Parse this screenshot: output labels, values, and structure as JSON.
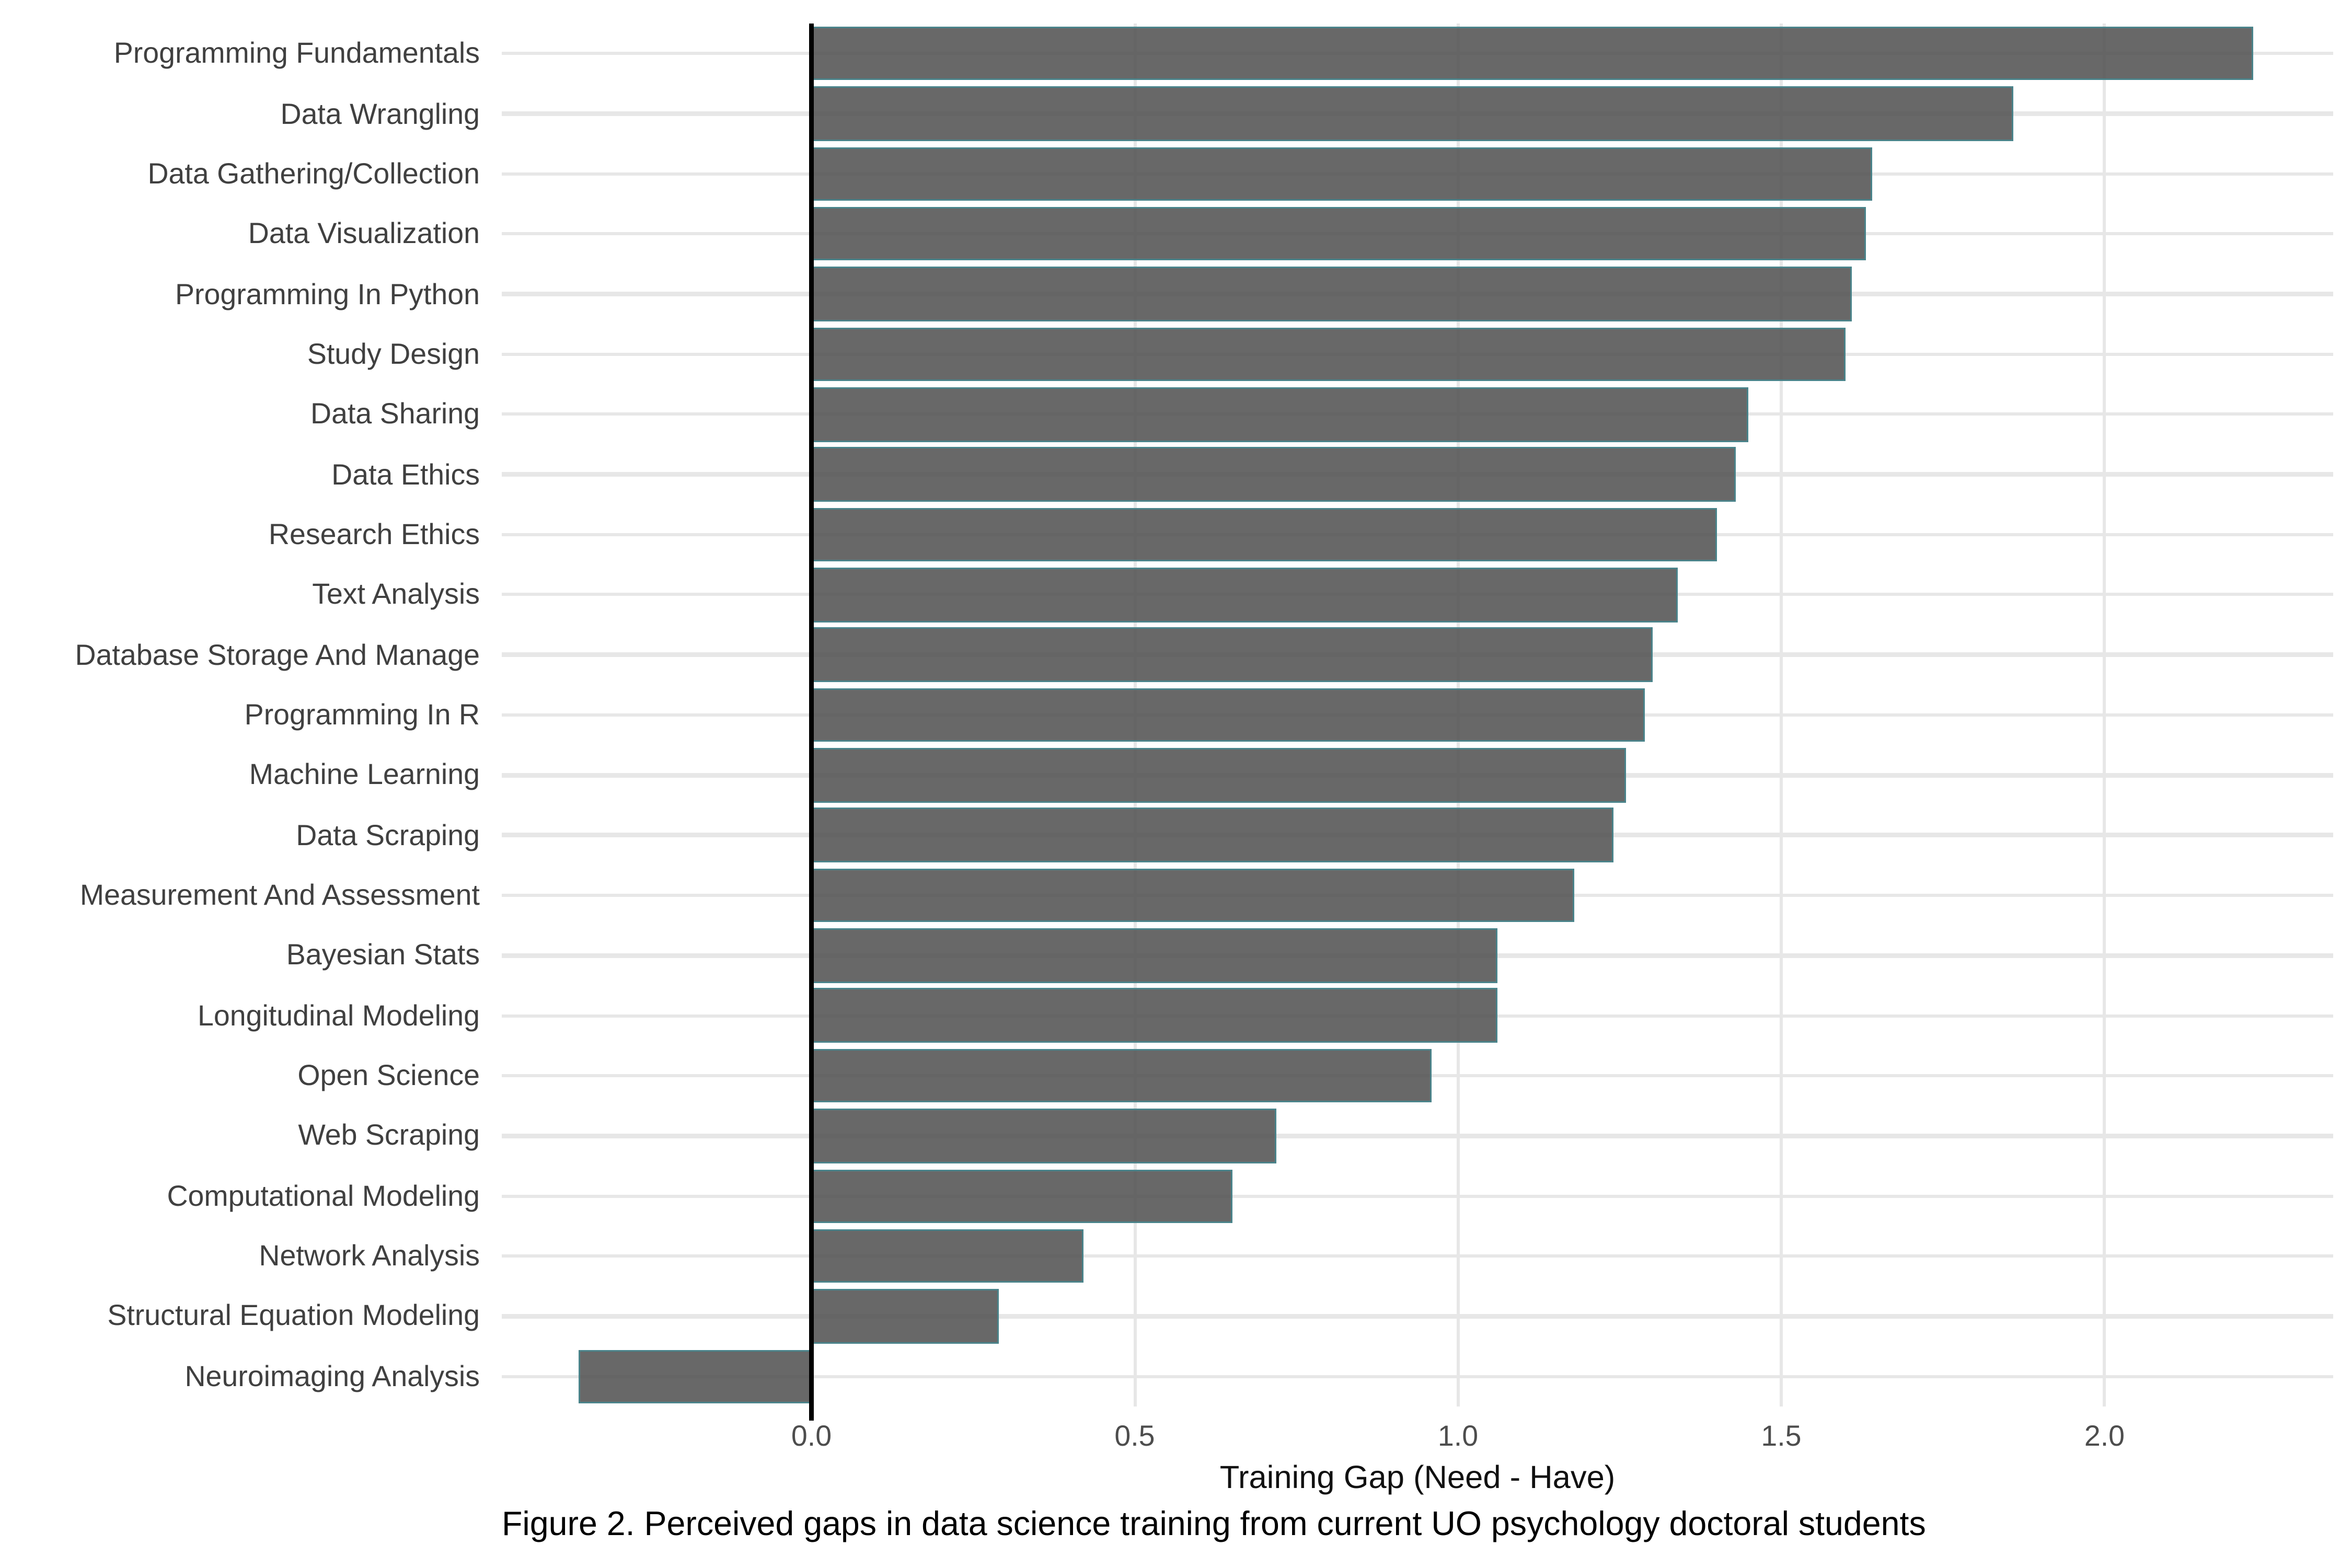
{
  "figure": {
    "x_axis_title": "Training Gap (Need - Have)",
    "caption": "Figure 2. Perceived gaps in data science training from current UO psychology doctoral students"
  },
  "chart_data": {
    "type": "bar",
    "orientation": "horizontal",
    "title": "",
    "xlabel": "Training Gap (Need - Have)",
    "ylabel": "",
    "caption": "Figure 2. Perceived gaps in data science training from current UO psychology doctoral students",
    "categories": [
      "Programming Fundamentals",
      "Data Wrangling",
      "Data Gathering/Collection",
      "Data Visualization",
      "Programming In Python",
      "Study Design",
      "Data Sharing",
      "Data Ethics",
      "Research Ethics",
      "Text Analysis",
      "Database Storage And Manage",
      "Programming In R",
      "Machine Learning",
      "Data Scraping",
      "Measurement And Assessment",
      "Bayesian Stats",
      "Longitudinal Modeling",
      "Open Science",
      "Web Scraping",
      "Computational Modeling",
      "Network Analysis",
      "Structural Equation Modeling",
      "Neuroimaging Analysis"
    ],
    "values": [
      2.23,
      1.86,
      1.64,
      1.63,
      1.61,
      1.6,
      1.45,
      1.43,
      1.4,
      1.34,
      1.3,
      1.29,
      1.26,
      1.24,
      1.18,
      1.06,
      1.06,
      0.96,
      0.72,
      0.65,
      0.42,
      0.29,
      -0.36
    ],
    "xticks": [
      0.0,
      0.5,
      1.0,
      1.5,
      2.0
    ],
    "xtick_labels": [
      "0.0",
      "0.5",
      "1.0",
      "1.5",
      "2.0"
    ],
    "xlim": [
      -0.48,
      2.36
    ],
    "grid": "major-only",
    "legend": "none",
    "colors": {
      "bar_fill": "#696969",
      "bar_fill_rgba": "rgba(77,77,77,0.85)",
      "bar_stroke": "#4A838A",
      "zero_line": "#000000",
      "gridline": "#e7e7e7",
      "background": "#ffffff",
      "category_text": "#404040",
      "tick_text": "#4d4d4d",
      "axis_title_text": "#111111",
      "caption_text": "#000000"
    }
  }
}
